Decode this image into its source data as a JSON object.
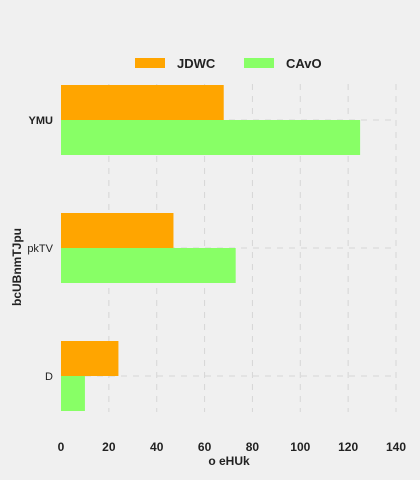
{
  "chart_data": {
    "type": "bar",
    "orientation": "horizontal",
    "categories": [
      "YMU",
      "pkTV",
      "D"
    ],
    "series": [
      {
        "name": "JDWC",
        "color": "#ffa500",
        "values": [
          68,
          47,
          24
        ]
      },
      {
        "name": "CAvO",
        "color": "#88ff66",
        "values": [
          125,
          73,
          10
        ]
      }
    ],
    "xlabel": "o eHUk",
    "ylabel": "bcUBnmTJpu",
    "xlim": [
      0,
      140
    ],
    "xticks": [
      0,
      20,
      40,
      60,
      80,
      100,
      120,
      140
    ],
    "grid": true,
    "legend_position": "top"
  }
}
